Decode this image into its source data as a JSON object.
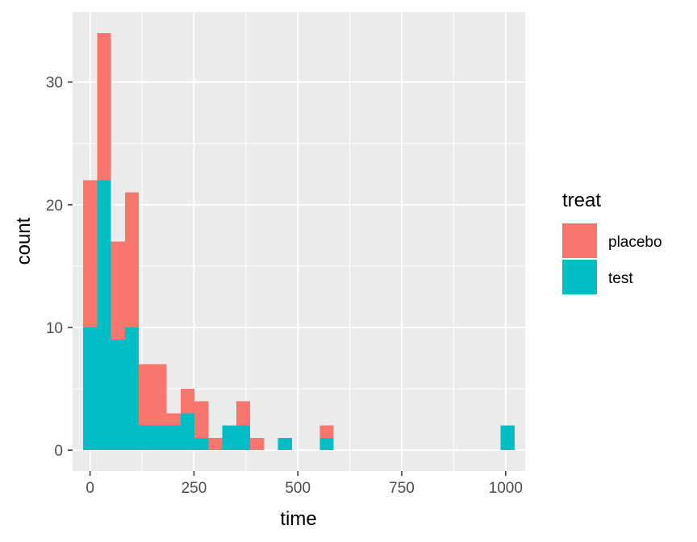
{
  "chart_data": {
    "type": "bar",
    "stacked": true,
    "bin_width": 33.5,
    "bin_centers": [
      0,
      33.5,
      67,
      100.5,
      134,
      167.5,
      201,
      234.5,
      268,
      301.5,
      335,
      368.5,
      402,
      435.5,
      469,
      502.5,
      536,
      569.5,
      603,
      636.5,
      670,
      703.5,
      737,
      770.5,
      804,
      837.5,
      871,
      904.5,
      938,
      971.5,
      1005
    ],
    "series": [
      {
        "name": "placebo",
        "color": "#F8766D",
        "values": [
          12,
          12,
          8,
          11,
          5,
          5,
          1,
          2,
          3,
          1,
          0,
          2,
          1,
          0,
          0,
          0,
          0,
          1,
          0,
          0,
          0,
          0,
          0,
          0,
          0,
          0,
          0,
          0,
          0,
          0,
          0
        ]
      },
      {
        "name": "test",
        "color": "#00BFC4",
        "values": [
          10,
          22,
          9,
          10,
          2,
          2,
          2,
          3,
          1,
          0,
          2,
          2,
          0,
          0,
          1,
          0,
          0,
          1,
          0,
          0,
          0,
          0,
          0,
          0,
          0,
          0,
          0,
          0,
          0,
          0,
          2
        ]
      }
    ],
    "xlabel": "time",
    "ylabel": "count",
    "xlim": [
      -42,
      1047
    ],
    "ylim": [
      -1.7,
      35.7
    ],
    "x_ticks": [
      0,
      250,
      500,
      750,
      1000
    ],
    "x_tick_labels": [
      "0",
      "250",
      "500",
      "750",
      "1000"
    ],
    "x_minor_ticks": [
      125,
      375,
      625,
      875
    ],
    "y_ticks": [
      0,
      10,
      20,
      30
    ],
    "y_tick_labels": [
      "0",
      "10",
      "20",
      "30"
    ],
    "y_minor_ticks": [
      5,
      15,
      25
    ],
    "panel_background": "#EBEBEB",
    "grid": true,
    "legend": {
      "title": "treat",
      "position": "right",
      "entries": [
        "placebo",
        "test"
      ]
    }
  }
}
